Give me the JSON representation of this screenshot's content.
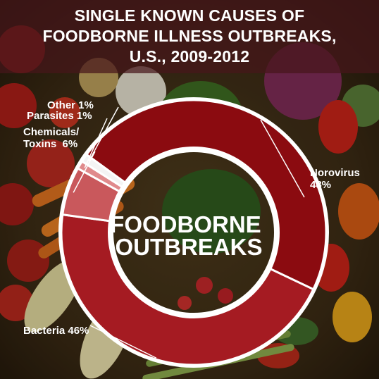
{
  "title_lines": [
    "SINGLE KNOWN CAUSES OF",
    "FOODBORNE ILLNESS OUTBREAKS,",
    "U.S., 2009-2012"
  ],
  "center_label": [
    "FOODBORNE",
    "OUTBREAKS"
  ],
  "colors": {
    "norovirus": "#8b0b10",
    "bacteria": "#a51b22",
    "chemicals_toxins": "#c9585c",
    "parasites": "#e08a8c",
    "other": "#f4f4f4",
    "title_band": "#46161a"
  },
  "chart_data": {
    "type": "pie",
    "title": "SINGLE KNOWN CAUSES OF FOODBORNE ILLNESS OUTBREAKS, U.S., 2009-2012",
    "center_text": "FOODBORNE OUTBREAKS",
    "legend": "none",
    "slices": [
      {
        "id": "norovirus",
        "label": "Norovirus",
        "text_lines": [
          "Norovirus",
          "48%"
        ],
        "value": 48
      },
      {
        "id": "bacteria",
        "label": "Bacteria",
        "text_lines": [
          "Bacteria 46%"
        ],
        "value": 46
      },
      {
        "id": "chemicals_toxins",
        "label": "Chemicals/ Toxins",
        "text_lines": [
          "Chemicals/",
          "Toxins  6%"
        ],
        "value": 6
      },
      {
        "id": "parasites",
        "label": "Parasites",
        "text_lines": [
          "Parasites 1%"
        ],
        "value": 1
      },
      {
        "id": "other",
        "label": "Other",
        "text_lines": [
          "Other 1%"
        ],
        "value": 1
      }
    ]
  }
}
